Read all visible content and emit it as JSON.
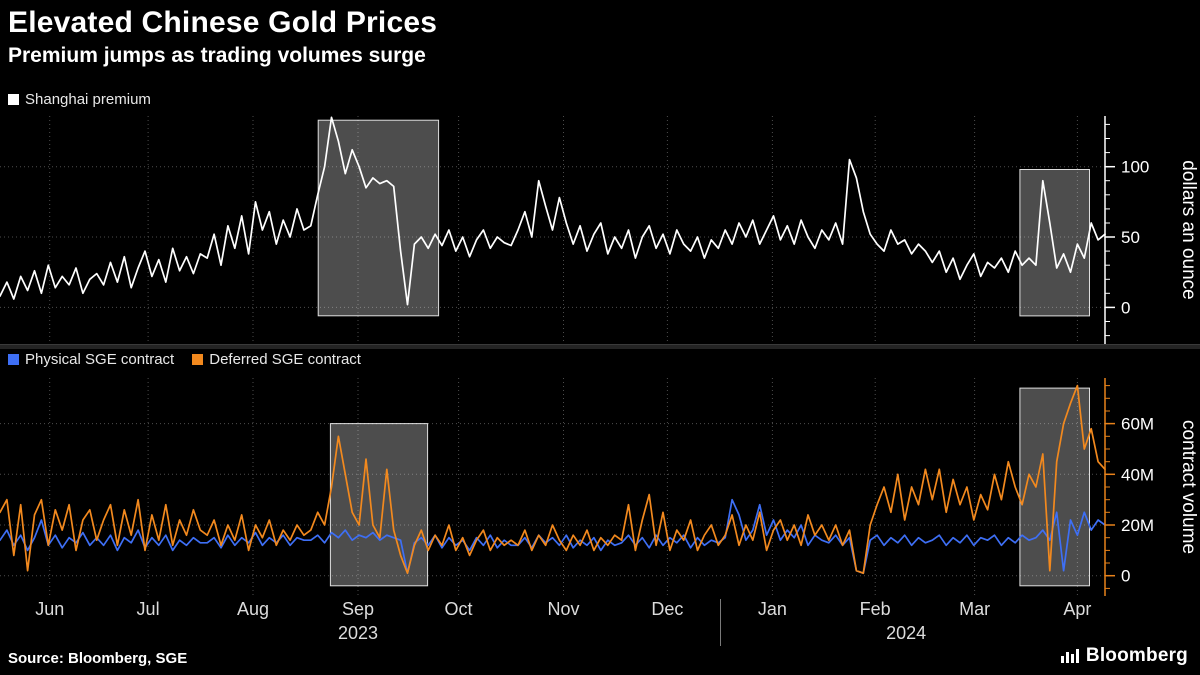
{
  "header": {
    "title": "Elevated Chinese Gold Prices",
    "subtitle": "Premium jumps as trading volumes surge"
  },
  "footer": {
    "source": "Source: Bloomberg, SGE",
    "brand": "Bloomberg"
  },
  "colors": {
    "background": "#000000",
    "grid": "#4d4d4d",
    "highlight_fill": "rgba(255,255,255,0.30)",
    "highlight_border": "rgba(255,255,255,0.85)",
    "premium": "#ffffff",
    "physical": "#3e6ff5",
    "deferred": "#f2891e"
  },
  "x_axis": {
    "months": [
      {
        "label": "Jun",
        "f": 0.045
      },
      {
        "label": "Jul",
        "f": 0.134
      },
      {
        "label": "Aug",
        "f": 0.229
      },
      {
        "label": "Sep",
        "f": 0.324
      },
      {
        "label": "Oct",
        "f": 0.415
      },
      {
        "label": "Nov",
        "f": 0.51
      },
      {
        "label": "Dec",
        "f": 0.604
      },
      {
        "label": "Jan",
        "f": 0.699
      },
      {
        "label": "Feb",
        "f": 0.792
      },
      {
        "label": "Mar",
        "f": 0.882
      },
      {
        "label": "Apr",
        "f": 0.975
      }
    ],
    "years": [
      {
        "label": "2023",
        "f": 0.324
      },
      {
        "label": "2024",
        "f": 0.82
      }
    ],
    "year_divider_f": 0.652
  },
  "chart_data": [
    {
      "type": "line",
      "title": "Shanghai premium",
      "ylabel": "dollars an ounce",
      "ylim": [
        -26,
        136
      ],
      "minor_step": 10,
      "axis_color": "#ffffff",
      "yticks": [
        {
          "v": 0,
          "label": "0"
        },
        {
          "v": 50,
          "label": "50"
        },
        {
          "v": 100,
          "label": "100"
        }
      ],
      "highlights": [
        {
          "f0": 0.288,
          "f1": 0.397,
          "v_top": 133,
          "v_bottom": -6
        },
        {
          "f0": 0.923,
          "f1": 0.986,
          "v_top": 98,
          "v_bottom": -6
        }
      ],
      "series": [
        {
          "name": "Shanghai premium",
          "color": "#ffffff",
          "values": [
            8,
            18,
            6,
            22,
            12,
            26,
            10,
            30,
            14,
            22,
            16,
            28,
            10,
            20,
            24,
            16,
            32,
            18,
            36,
            14,
            28,
            40,
            22,
            34,
            18,
            42,
            26,
            36,
            24,
            38,
            35,
            52,
            30,
            58,
            42,
            65,
            38,
            75,
            55,
            68,
            45,
            62,
            50,
            70,
            55,
            58,
            80,
            100,
            135,
            118,
            95,
            112,
            100,
            85,
            92,
            88,
            90,
            86,
            40,
            2,
            45,
            50,
            42,
            52,
            44,
            55,
            40,
            50,
            36,
            48,
            55,
            42,
            50,
            46,
            44,
            55,
            68,
            50,
            90,
            72,
            55,
            78,
            60,
            45,
            58,
            40,
            52,
            60,
            38,
            50,
            42,
            55,
            35,
            50,
            58,
            42,
            52,
            38,
            55,
            45,
            40,
            50,
            35,
            48,
            42,
            55,
            45,
            60,
            50,
            62,
            45,
            55,
            65,
            48,
            58,
            45,
            62,
            50,
            42,
            55,
            48,
            60,
            45,
            105,
            92,
            68,
            52,
            45,
            40,
            55,
            45,
            48,
            38,
            45,
            40,
            32,
            40,
            25,
            35,
            20,
            30,
            38,
            22,
            32,
            28,
            35,
            25,
            40,
            30,
            35,
            30,
            90,
            60,
            28,
            38,
            25,
            45,
            35,
            60,
            48,
            52
          ]
        }
      ]
    },
    {
      "type": "line",
      "title": "SGE contract volume",
      "ylabel": "contract volume",
      "ylim": [
        -8,
        78
      ],
      "minor_step": 5,
      "axis_color": "#e8821a",
      "yticks": [
        {
          "v": 0,
          "label": "0"
        },
        {
          "v": 20,
          "label": "20M"
        },
        {
          "v": 40,
          "label": "40M"
        },
        {
          "v": 60,
          "label": "60M"
        }
      ],
      "highlights": [
        {
          "f0": 0.299,
          "f1": 0.387,
          "v_top": 60,
          "v_bottom": -4
        },
        {
          "f0": 0.923,
          "f1": 0.986,
          "v_top": 74,
          "v_bottom": -4
        }
      ],
      "series": [
        {
          "name": "Physical SGE contract",
          "color": "#3e6ff5",
          "values": [
            14,
            18,
            12,
            16,
            10,
            15,
            22,
            12,
            16,
            11,
            15,
            13,
            17,
            12,
            15,
            12,
            16,
            10,
            15,
            13,
            18,
            11,
            15,
            12,
            16,
            10,
            14,
            12,
            15,
            13,
            13,
            15,
            11,
            16,
            12,
            15,
            13,
            17,
            12,
            15,
            13,
            16,
            12,
            15,
            14,
            14,
            16,
            13,
            17,
            15,
            18,
            14,
            16,
            15,
            17,
            14,
            16,
            15,
            14,
            1,
            13,
            15,
            12,
            16,
            11,
            15,
            12,
            14,
            10,
            15,
            12,
            16,
            11,
            14,
            12,
            12,
            15,
            11,
            16,
            13,
            15,
            12,
            16,
            11,
            14,
            12,
            15,
            10,
            14,
            12,
            13,
            16,
            12,
            15,
            11,
            16,
            12,
            15,
            13,
            16,
            11,
            15,
            12,
            14,
            13,
            15,
            30,
            24,
            14,
            18,
            28,
            16,
            22,
            14,
            18,
            15,
            20,
            12,
            16,
            14,
            13,
            16,
            12,
            15,
            2,
            1,
            14,
            16,
            12,
            15,
            13,
            16,
            12,
            15,
            13,
            14,
            16,
            12,
            15,
            13,
            16,
            12,
            15,
            14,
            16,
            12,
            15,
            13,
            16,
            14,
            15,
            18,
            14,
            25,
            2,
            22,
            16,
            25,
            18,
            22,
            20
          ]
        },
        {
          "name": "Deferred SGE contract",
          "color": "#f2891e",
          "values": [
            25,
            30,
            8,
            28,
            2,
            24,
            30,
            12,
            26,
            18,
            28,
            10,
            22,
            26,
            14,
            22,
            28,
            12,
            26,
            16,
            30,
            10,
            24,
            14,
            28,
            12,
            22,
            16,
            26,
            18,
            16,
            22,
            12,
            20,
            14,
            24,
            10,
            20,
            15,
            22,
            12,
            18,
            14,
            20,
            16,
            18,
            25,
            20,
            35,
            55,
            40,
            25,
            20,
            46,
            20,
            15,
            42,
            18,
            8,
            1,
            12,
            18,
            10,
            16,
            12,
            20,
            10,
            15,
            8,
            14,
            18,
            10,
            15,
            12,
            14,
            12,
            18,
            10,
            16,
            12,
            20,
            14,
            10,
            16,
            12,
            18,
            10,
            15,
            12,
            16,
            14,
            28,
            10,
            22,
            32,
            12,
            25,
            10,
            18,
            14,
            22,
            10,
            16,
            20,
            12,
            16,
            24,
            12,
            20,
            14,
            25,
            10,
            18,
            22,
            14,
            20,
            12,
            24,
            16,
            20,
            14,
            20,
            12,
            18,
            2,
            1,
            20,
            28,
            35,
            25,
            40,
            22,
            35,
            28,
            42,
            30,
            42,
            25,
            38,
            28,
            35,
            22,
            32,
            26,
            40,
            30,
            45,
            35,
            28,
            40,
            35,
            48,
            2,
            45,
            60,
            68,
            75,
            50,
            58,
            45,
            42
          ]
        }
      ]
    }
  ]
}
